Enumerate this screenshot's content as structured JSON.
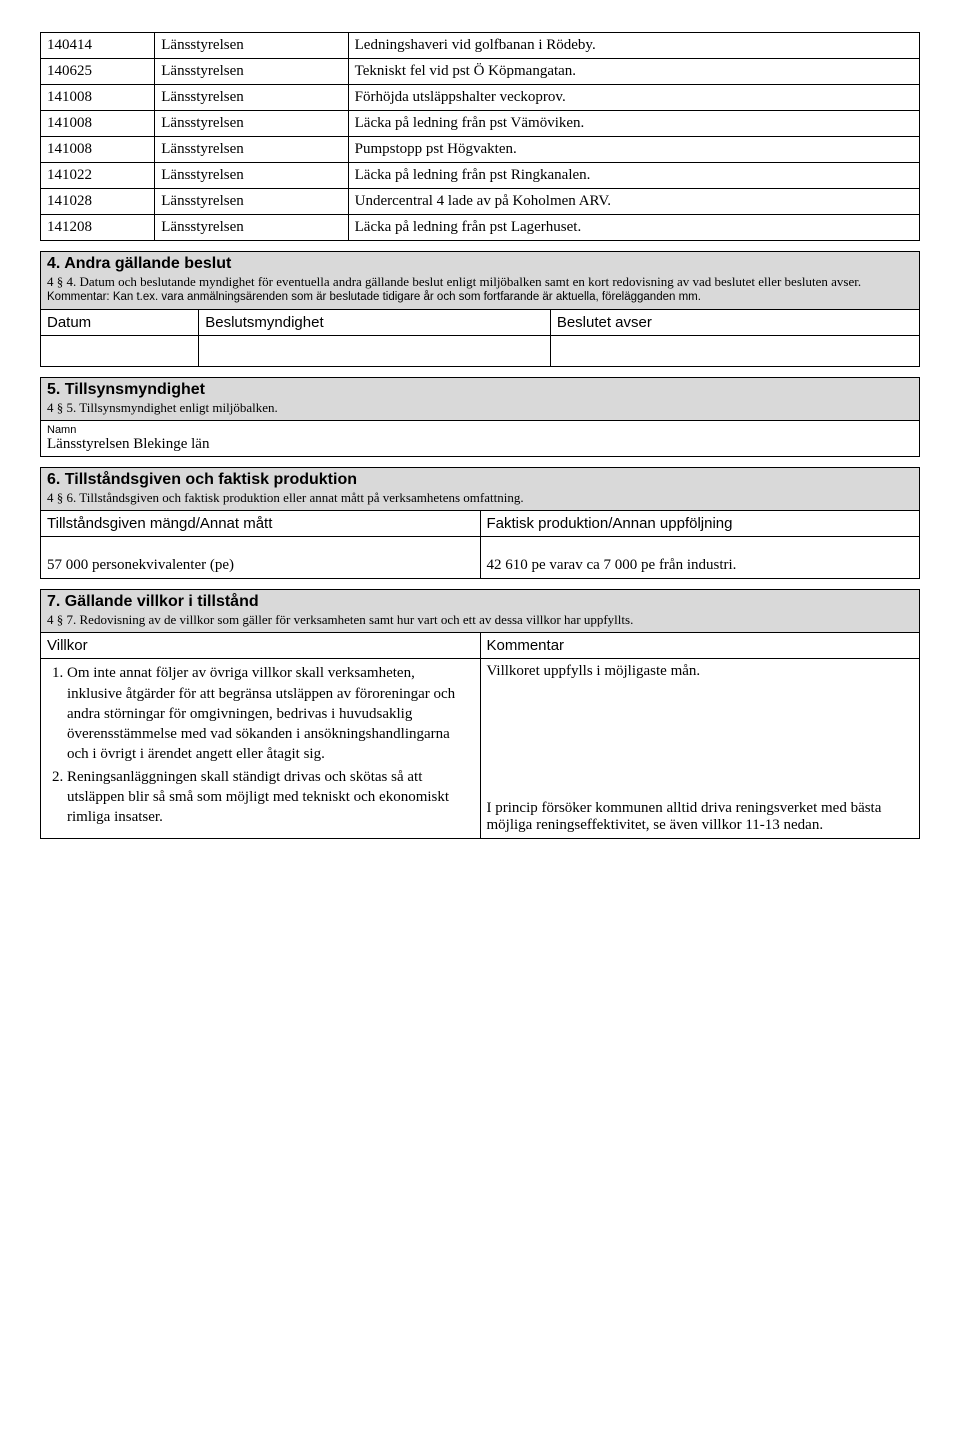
{
  "events": [
    {
      "date": "140414",
      "auth": "Länsstyrelsen",
      "desc": "Ledningshaveri vid golfbanan i Rödeby."
    },
    {
      "date": "140625",
      "auth": "Länsstyrelsen",
      "desc": "Tekniskt fel vid pst Ö Köpmangatan."
    },
    {
      "date": "141008",
      "auth": "Länsstyrelsen",
      "desc": "Förhöjda utsläppshalter veckoprov."
    },
    {
      "date": "141008",
      "auth": "Länsstyrelsen",
      "desc": "Läcka på ledning från pst Vämöviken."
    },
    {
      "date": "141008",
      "auth": "Länsstyrelsen",
      "desc": "Pumpstopp pst Högvakten."
    },
    {
      "date": "141022",
      "auth": "Länsstyrelsen",
      "desc": "Läcka på ledning från pst Ringkanalen."
    },
    {
      "date": "141028",
      "auth": "Länsstyrelsen",
      "desc": "Undercentral 4 lade av på Koholmen ARV."
    },
    {
      "date": "141208",
      "auth": "Länsstyrelsen",
      "desc": "Läcka på ledning från pst Lagerhuset."
    }
  ],
  "sec4": {
    "title": "4. Andra gällande beslut",
    "sub": "4 § 4. Datum och beslutande myndighet för eventuella andra gällande beslut enligt miljöbalken samt en kort redovisning av vad beslutet eller besluten avser.",
    "comment": "Kommentar: Kan t.ex. vara anmälningsärenden som är beslutade tidigare år och som fortfarande är aktuella, förelägganden mm.",
    "cols": {
      "c1": "Datum",
      "c2": "Beslutsmyndighet",
      "c3": "Beslutet avser"
    }
  },
  "sec5": {
    "title": "5. Tillsynsmyndighet",
    "sub": "4 § 5. Tillsynsmyndighet enligt miljöbalken.",
    "label": "Namn",
    "value": "Länsstyrelsen Blekinge län"
  },
  "sec6": {
    "title": "6. Tillståndsgiven och faktisk produktion",
    "sub": "4 § 6. Tillståndsgiven och faktisk produktion eller annat mått på verksamhetens omfattning.",
    "col1": "Tillståndsgiven mängd/Annat mått",
    "col2": "Faktisk produktion/Annan uppföljning",
    "val1": "57 000 personekvivalenter (pe)",
    "val2": "42 610 pe varav ca 7 000 pe från industri."
  },
  "sec7": {
    "title": "7. Gällande villkor i tillstånd",
    "sub": "4 § 7. Redovisning av de villkor som gäller för verksamheten samt hur vart och ett av dessa villkor har uppfyllts.",
    "col1": "Villkor",
    "col2": "Kommentar",
    "v1": "Om inte annat följer av övriga villkor skall verksamheten, inklusive åtgärder för att begränsa utsläppen av föroreningar och andra störningar för omgivningen, bedrivas i huvudsaklig överensstämmelse med vad sökanden i ansökningshandlingarna och i övrigt i ärendet angett eller åtagit sig.",
    "k1": "Villkoret uppfylls i möjligaste mån.",
    "v2": "Reningsanläggningen skall ständigt drivas och skötas så att utsläppen blir så små som möjligt med tekniskt och ekonomiskt rimliga insatser.",
    "k2": "I princip försöker kommunen alltid driva reningsverket med bästa möjliga reningseffektivitet, se även villkor 11-13 nedan."
  }
}
